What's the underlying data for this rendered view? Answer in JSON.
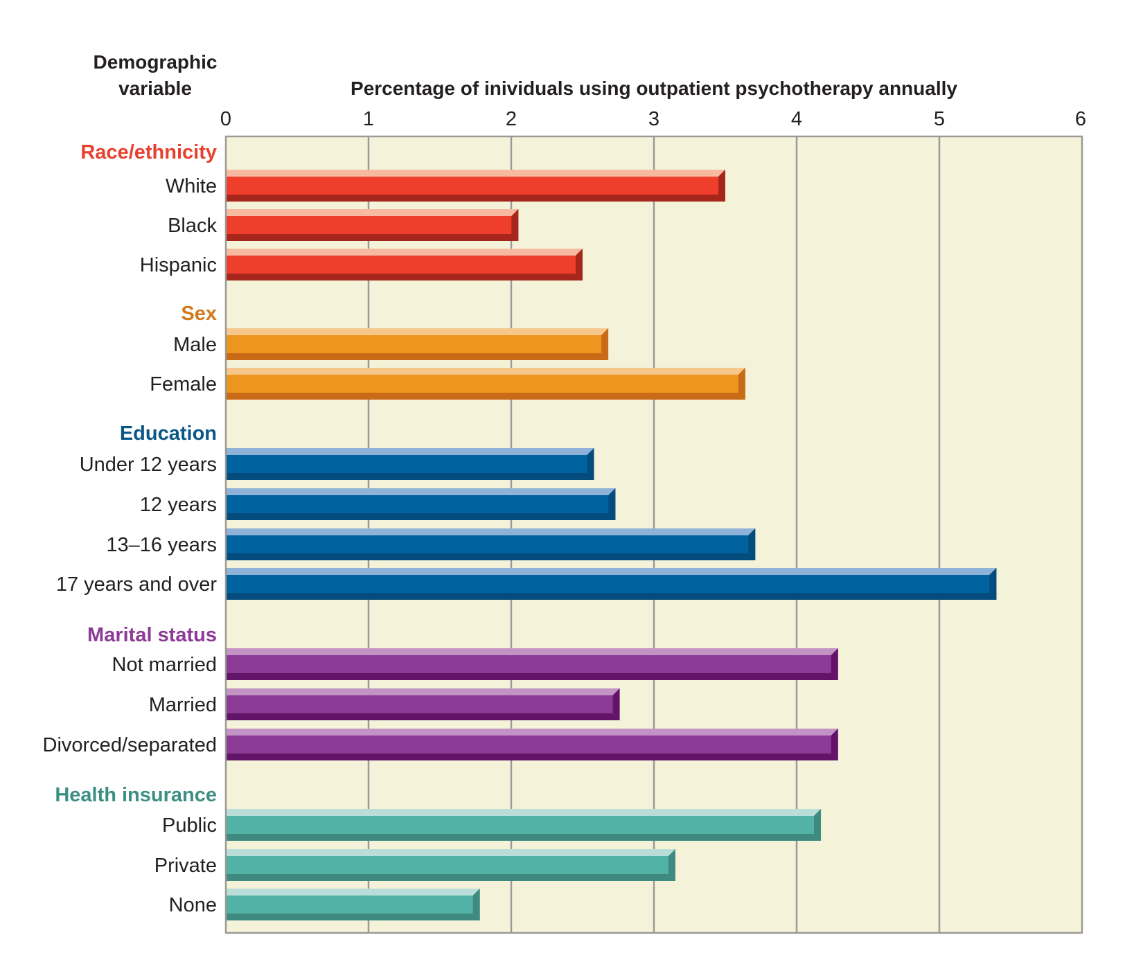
{
  "title_fragment": "",
  "chart_data": {
    "type": "bar",
    "orientation": "horizontal",
    "title": "",
    "ylabel": "Demographic variable",
    "xlabel": "Percentage of inividuals using outpatient psychotherapy annually",
    "xlim": [
      0,
      6
    ],
    "xticks": [
      "0",
      "1",
      "2",
      "3",
      "4",
      "5",
      "6"
    ],
    "grid": true,
    "plot_background": "#f4f2d9",
    "groups": [
      {
        "name": "Race/ethnicity",
        "color": "#ef3e2c",
        "label_color": "#e8402f",
        "light": "#f7b9a0",
        "dark": "#a6261b",
        "categories": [
          "White",
          "Black",
          "Hispanic"
        ],
        "values": [
          3.5,
          2.05,
          2.5
        ]
      },
      {
        "name": "Sex",
        "color": "#ec951f",
        "label_color": "#d2781d",
        "light": "#f7c68a",
        "dark": "#c96a17",
        "categories": [
          "Male",
          "Female"
        ],
        "values": [
          2.68,
          3.64
        ]
      },
      {
        "name": "Education",
        "color": "#00629e",
        "label_color": "#0a5787",
        "light": "#8fb2d8",
        "dark": "#044c7d",
        "categories": [
          "Under 12 years",
          "12 years",
          "13–16 years",
          "17 years and over"
        ],
        "values": [
          2.58,
          2.73,
          3.71,
          5.4
        ]
      },
      {
        "name": "Marital status",
        "color": "#8b3a96",
        "label_color": "#8b3a96",
        "light": "#c393c6",
        "dark": "#621568",
        "categories": [
          "Not married",
          "Married",
          "Divorced/separated"
        ],
        "values": [
          4.29,
          2.76,
          4.29
        ]
      },
      {
        "name": "Health insurance",
        "color": "#52b2a5",
        "label_color": "#3d8f84",
        "light": "#b9ddd8",
        "dark": "#3e8a80",
        "categories": [
          "Public",
          "Private",
          "None"
        ],
        "values": [
          4.17,
          3.15,
          1.78
        ]
      }
    ]
  }
}
